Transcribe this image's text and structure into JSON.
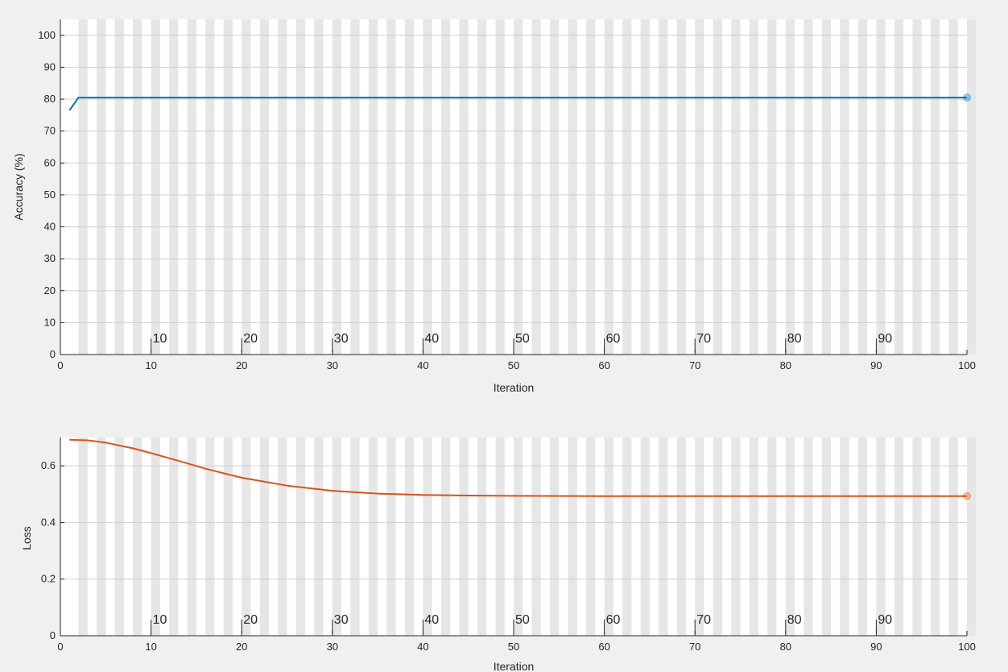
{
  "chart_data": [
    {
      "type": "line",
      "title": "",
      "xlabel": "Iteration",
      "ylabel": "Accuracy (%)",
      "xlim": [
        0,
        100
      ],
      "ylim": [
        0,
        105
      ],
      "xticks": [
        "0",
        "10",
        "20",
        "30",
        "40",
        "50",
        "60",
        "70",
        "80",
        "90",
        "100"
      ],
      "yticks": [
        "0",
        "10",
        "20",
        "30",
        "40",
        "50",
        "60",
        "70",
        "80",
        "90",
        "100"
      ],
      "epoch_labels": [
        "10",
        "20",
        "30",
        "40",
        "50",
        "60",
        "70",
        "80",
        "90"
      ],
      "grid": true,
      "series": [
        {
          "color": "#0072BD",
          "x": [
            1,
            2,
            100
          ],
          "y": [
            76.5,
            80.5,
            80.5
          ],
          "final_marker": true
        }
      ]
    },
    {
      "type": "line",
      "title": "",
      "xlabel": "Iteration",
      "ylabel": "Loss",
      "xlim": [
        0,
        100
      ],
      "ylim": [
        0,
        0.7
      ],
      "xticks": [
        "0",
        "10",
        "20",
        "30",
        "40",
        "50",
        "60",
        "70",
        "80",
        "90",
        "100"
      ],
      "yticks": [
        "0",
        "0.2",
        "0.4",
        "0.6"
      ],
      "epoch_labels": [
        "10",
        "20",
        "30",
        "40",
        "50",
        "60",
        "70",
        "80",
        "90"
      ],
      "grid": true,
      "series": [
        {
          "color": "#D95319",
          "x": [
            1,
            3,
            5,
            8,
            10,
            13,
            16,
            20,
            25,
            30,
            35,
            40,
            45,
            50,
            60,
            70,
            80,
            90,
            100
          ],
          "y": [
            0.692,
            0.69,
            0.682,
            0.662,
            0.645,
            0.618,
            0.59,
            0.558,
            0.53,
            0.512,
            0.502,
            0.497,
            0.495,
            0.494,
            0.493,
            0.493,
            0.493,
            0.493,
            0.493
          ],
          "final_marker": true
        }
      ]
    }
  ]
}
